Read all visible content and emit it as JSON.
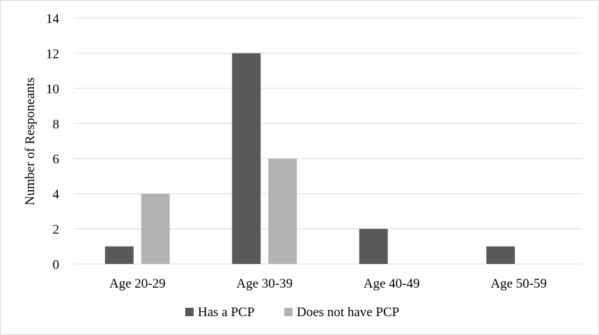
{
  "chart_data": {
    "type": "bar",
    "title": "",
    "xlabel": "",
    "ylabel": "Number of Responeants",
    "categories": [
      "Age 20-29",
      "Age 30-39",
      "Age 40-49",
      "Age 50-59"
    ],
    "series": [
      {
        "name": "Has a PCP",
        "values": [
          1,
          12,
          2,
          1
        ],
        "color": "#595959"
      },
      {
        "name": "Does not have PCP",
        "values": [
          4,
          6,
          0,
          0
        ],
        "color": "#b3b3b3"
      }
    ],
    "ylim": [
      0,
      14
    ],
    "yticks": [
      0,
      2,
      4,
      6,
      8,
      10,
      12,
      14
    ],
    "grid": true,
    "legend_position": "bottom"
  }
}
